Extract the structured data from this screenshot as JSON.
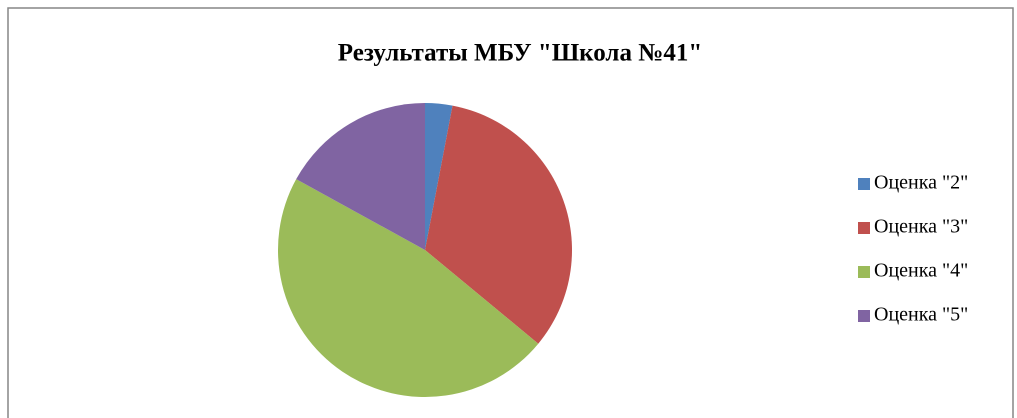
{
  "chart_data": {
    "type": "pie",
    "title": "Результаты МБУ \"Школа №41\"",
    "categories": [
      "Оценка \"2\"",
      "Оценка \"3\"",
      "Оценка \"4\"",
      "Оценка \"5\""
    ],
    "values": [
      3,
      33,
      47,
      17
    ],
    "colors": [
      "#4f81bd",
      "#c0504d",
      "#9bbb59",
      "#8064a2"
    ],
    "legend": "right"
  }
}
